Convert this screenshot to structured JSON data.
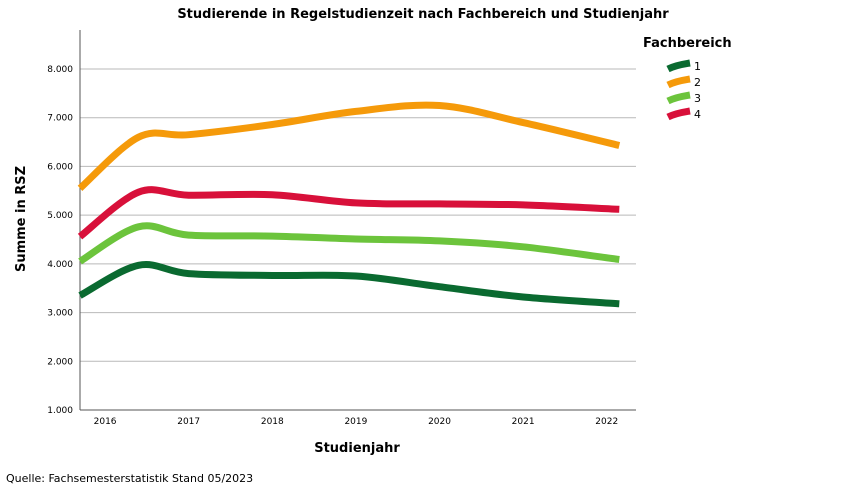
{
  "footer": {
    "source": "Quelle: Fachsemesterstatistik Stand 05/2023"
  },
  "chart_data": {
    "type": "line",
    "title": "Studierende in Regelstudienzeit nach Fachbereich und Studienjahr",
    "xlabel": "Studienjahr",
    "ylabel": "Summe in RSZ",
    "x": [
      "2016",
      "2017",
      "2018",
      "2019",
      "2020",
      "2021",
      "2022"
    ],
    "xlim": [
      2015.7,
      2022.35
    ],
    "ylim": [
      1000,
      8800
    ],
    "yticks": [
      1000,
      2000,
      3000,
      4000,
      5000,
      6000,
      7000,
      8000
    ],
    "ytick_labels": [
      "1.000",
      "2.000",
      "3.000",
      "4.000",
      "5.000",
      "6.000",
      "7.000",
      "8.000"
    ],
    "grid": true,
    "legend": {
      "title": "Fachbereich",
      "position": "right"
    },
    "series": [
      {
        "name": "1",
        "color": "#0a6a30",
        "points": [
          [
            2015.7,
            3350
          ],
          [
            2016.4,
            3970
          ],
          [
            2017,
            3800
          ],
          [
            2018,
            3760
          ],
          [
            2019,
            3750
          ],
          [
            2020,
            3530
          ],
          [
            2021,
            3320
          ],
          [
            2022.15,
            3180
          ]
        ]
      },
      {
        "name": "2",
        "color": "#f59a0a",
        "points": [
          [
            2015.7,
            5550
          ],
          [
            2016.4,
            6600
          ],
          [
            2017,
            6650
          ],
          [
            2018,
            6860
          ],
          [
            2019,
            7130
          ],
          [
            2020,
            7250
          ],
          [
            2021,
            6900
          ],
          [
            2022.15,
            6430
          ]
        ]
      },
      {
        "name": "3",
        "color": "#6cc43c",
        "points": [
          [
            2015.7,
            4050
          ],
          [
            2016.4,
            4760
          ],
          [
            2017,
            4590
          ],
          [
            2018,
            4570
          ],
          [
            2019,
            4510
          ],
          [
            2020,
            4470
          ],
          [
            2021,
            4350
          ],
          [
            2022.15,
            4090
          ]
        ]
      },
      {
        "name": "4",
        "color": "#d8103a",
        "points": [
          [
            2015.7,
            4560
          ],
          [
            2016.4,
            5470
          ],
          [
            2017,
            5410
          ],
          [
            2018,
            5420
          ],
          [
            2019,
            5250
          ],
          [
            2020,
            5230
          ],
          [
            2021,
            5210
          ],
          [
            2022.15,
            5120
          ]
        ]
      }
    ]
  }
}
